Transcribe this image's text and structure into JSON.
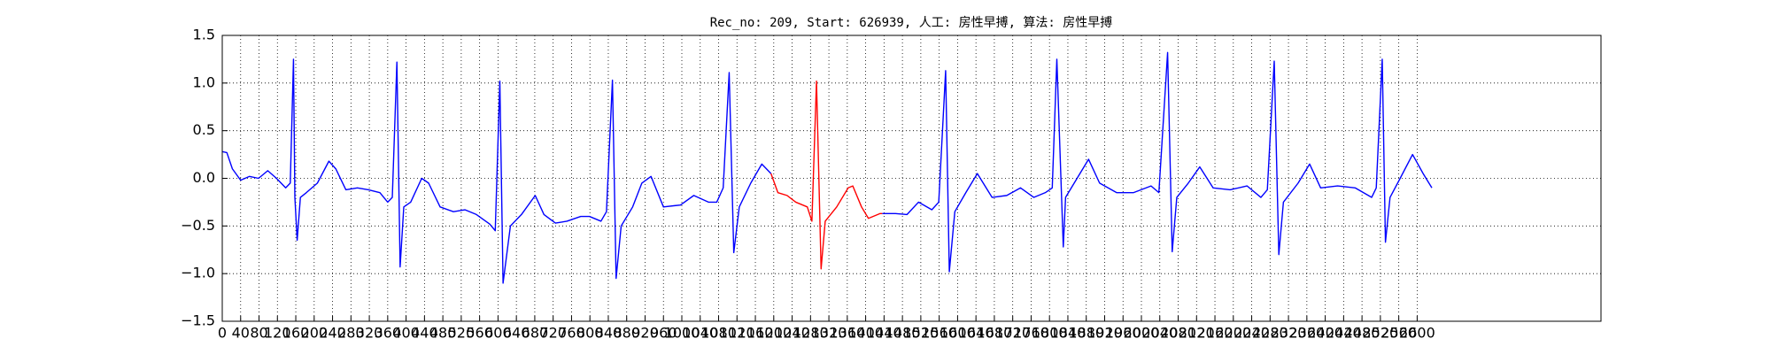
{
  "chart_data": {
    "type": "line",
    "title": "Rec_no: 209, Start: 626939, 人工: 房性早搏, 算法: 房性早搏",
    "xlim": [
      0,
      3000
    ],
    "xticks": [
      0,
      40,
      80,
      120,
      160,
      200,
      240,
      280,
      320,
      360,
      400,
      440,
      480,
      520,
      560,
      600,
      640,
      680,
      720,
      760,
      800,
      840,
      880,
      920,
      960,
      1000,
      1040,
      1080,
      1120,
      1160,
      1200,
      1240,
      1280,
      1320,
      1360,
      1400,
      1440,
      1480,
      1520,
      1560,
      1600,
      1640,
      1680,
      1720,
      1760,
      1800,
      1840,
      1880,
      1920,
      1960,
      2000,
      2040,
      2080,
      2120,
      2160,
      2200,
      2240,
      2280,
      2320,
      2360,
      2400,
      2440,
      2480,
      2520,
      2560,
      2600
    ],
    "ylim": [
      -1.5,
      1.5
    ],
    "yticks": [
      {
        "value": -1.5,
        "label": "−1.5"
      },
      {
        "value": -1,
        "label": "−1.0"
      },
      {
        "value": -0.5,
        "label": "−0.5"
      },
      {
        "value": 0,
        "label": "0.0"
      },
      0.5,
      {
        "value": 1,
        "label": "1.0"
      },
      1.5
    ],
    "grid": true,
    "series": [
      {
        "color": "#0000ff",
        "x": [
          0,
          10,
          22,
          40,
          59,
          79,
          99,
          118,
          138,
          148,
          155,
          158,
          163,
          170,
          183,
          207,
          232,
          247,
          269,
          294,
          318,
          343,
          360,
          370,
          380,
          385,
          387,
          395,
          410,
          434,
          449,
          474,
          503,
          528,
          553,
          582,
          594,
          604,
          611,
          627,
          651,
          681,
          700,
          725,
          750,
          780,
          799,
          824,
          836,
          849,
          857,
          868,
          893,
          913,
          933,
          960,
          997,
          1026,
          1058,
          1076,
          1090,
          1103,
          1113,
          1125,
          1150,
          1174,
          1194,
          1300,
          1436,
          1465,
          1490,
          1515,
          1544,
          1559,
          1574,
          1582,
          1594,
          1618,
          1643,
          1675,
          1707,
          1737,
          1766,
          1791,
          1806,
          1816,
          1830,
          1835,
          1860,
          1885,
          1909,
          1946,
          1983,
          2021,
          2038,
          2057,
          2067,
          2077,
          2102,
          2127,
          2156,
          2193,
          2230,
          2260,
          2274,
          2289,
          2299,
          2309,
          2341,
          2366,
          2390,
          2427,
          2465,
          2501,
          2511,
          2524,
          2531,
          2541,
          2563,
          2590,
          2613,
          2632
        ],
        "values": [
          0.28,
          0.27,
          0.1,
          -0.02,
          0.02,
          0.0,
          0.08,
          0.0,
          -0.1,
          -0.05,
          1.25,
          -0.2,
          -0.65,
          -0.2,
          -0.15,
          -0.05,
          0.18,
          0.1,
          -0.12,
          -0.1,
          -0.12,
          -0.15,
          -0.25,
          -0.2,
          1.22,
          -0.3,
          -0.93,
          -0.3,
          -0.25,
          0.0,
          -0.05,
          -0.3,
          -0.35,
          -0.33,
          -0.38,
          -0.48,
          -0.55,
          1.02,
          -1.1,
          -0.5,
          -0.38,
          -0.18,
          -0.38,
          -0.47,
          -0.45,
          -0.4,
          -0.4,
          -0.45,
          -0.35,
          1.03,
          -1.05,
          -0.5,
          -0.3,
          -0.05,
          0.02,
          -0.3,
          -0.28,
          -0.18,
          -0.25,
          -0.25,
          -0.1,
          1.11,
          -0.78,
          -0.3,
          -0.05,
          0.15,
          0.05,
          null,
          -0.37,
          -0.37,
          -0.38,
          -0.25,
          -0.33,
          -0.25,
          1.13,
          -0.98,
          -0.35,
          -0.15,
          0.05,
          -0.2,
          -0.18,
          -0.1,
          -0.2,
          -0.15,
          -0.1,
          1.25,
          -0.72,
          -0.2,
          0.0,
          0.2,
          -0.05,
          -0.15,
          -0.15,
          -0.08,
          -0.15,
          1.32,
          -0.77,
          -0.2,
          -0.05,
          0.12,
          -0.1,
          -0.12,
          -0.08,
          -0.2,
          -0.12,
          1.23,
          -0.8,
          -0.25,
          -0.05,
          0.15,
          -0.1,
          -0.08,
          -0.1,
          -0.2,
          -0.1,
          1.25,
          -0.67,
          -0.2,
          0.0,
          0.25,
          0.05,
          -0.1
        ]
      },
      {
        "color": "#ff0000",
        "x": [
          1194,
          1209,
          1229,
          1248,
          1273,
          1283,
          1293,
          1303,
          1312,
          1337,
          1362,
          1372,
          1391,
          1406,
          1431,
          1436
        ],
        "values": [
          0.05,
          -0.15,
          -0.18,
          -0.25,
          -0.3,
          -0.45,
          1.02,
          -0.95,
          -0.45,
          -0.3,
          -0.1,
          -0.08,
          -0.3,
          -0.42,
          -0.37,
          -0.37
        ]
      }
    ]
  }
}
